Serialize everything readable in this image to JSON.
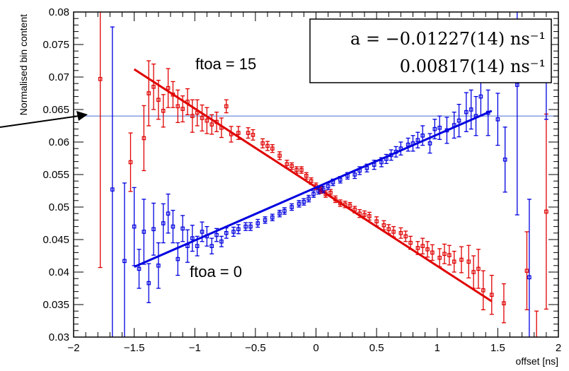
{
  "chart_data": {
    "type": "scatter",
    "xlabel": "offset [ns]",
    "ylabel": "Normalised bin content",
    "xlim": [
      -2,
      2
    ],
    "ylim": [
      0.03,
      0.08
    ],
    "x_ticks": [
      "−2",
      "−1.5",
      "−1",
      "−0.5",
      "0",
      "0.5",
      "1",
      "1.5",
      "2"
    ],
    "y_ticks": [
      "0.03",
      "0.035",
      "0.04",
      "0.045",
      "0.05",
      "0.055",
      "0.06",
      "0.065",
      "0.07",
      "0.075",
      "0.08"
    ],
    "reference_line_y": 0.064,
    "series": [
      {
        "label": "ftoa = 15",
        "color": "#e00000",
        "fit": {
          "x": [
            -1.5,
            1.45
          ],
          "y": [
            0.0712,
            0.0355
          ]
        },
        "points": [
          {
            "x": -1.78,
            "y": 0.0697,
            "err": 0.029
          },
          {
            "x": -1.53,
            "y": 0.0569,
            "err": 0.0045
          },
          {
            "x": -1.42,
            "y": 0.0606,
            "err": 0.005
          },
          {
            "x": -1.38,
            "y": 0.0675,
            "err": 0.005
          },
          {
            "x": -1.34,
            "y": 0.0685,
            "err": 0.0035
          },
          {
            "x": -1.3,
            "y": 0.0665,
            "err": 0.003
          },
          {
            "x": -1.26,
            "y": 0.0648,
            "err": 0.0025
          },
          {
            "x": -1.22,
            "y": 0.0683,
            "err": 0.003
          },
          {
            "x": -1.18,
            "y": 0.0673,
            "err": 0.002
          },
          {
            "x": -1.14,
            "y": 0.0655,
            "err": 0.0025
          },
          {
            "x": -1.1,
            "y": 0.0651,
            "err": 0.002
          },
          {
            "x": -1.06,
            "y": 0.0662,
            "err": 0.002
          },
          {
            "x": -1.02,
            "y": 0.064,
            "err": 0.0025
          },
          {
            "x": -0.98,
            "y": 0.0645,
            "err": 0.002
          },
          {
            "x": -0.94,
            "y": 0.0637,
            "err": 0.002
          },
          {
            "x": -0.9,
            "y": 0.0633,
            "err": 0.002
          },
          {
            "x": -0.86,
            "y": 0.0627,
            "err": 0.0015
          },
          {
            "x": -0.82,
            "y": 0.0631,
            "err": 0.0015
          },
          {
            "x": -0.78,
            "y": 0.0622,
            "err": 0.0015
          },
          {
            "x": -0.74,
            "y": 0.0655,
            "err": 0.001
          },
          {
            "x": -0.7,
            "y": 0.0612,
            "err": 0.0012
          },
          {
            "x": -0.64,
            "y": 0.0614,
            "err": 0.001
          },
          {
            "x": -0.56,
            "y": 0.0614,
            "err": 0.0008
          },
          {
            "x": -0.52,
            "y": 0.0611,
            "err": 0.0008
          },
          {
            "x": -0.44,
            "y": 0.0598,
            "err": 0.0007
          },
          {
            "x": -0.4,
            "y": 0.0594,
            "err": 0.0007
          },
          {
            "x": -0.36,
            "y": 0.059,
            "err": 0.0006
          },
          {
            "x": -0.3,
            "y": 0.0579,
            "err": 0.0006
          },
          {
            "x": -0.24,
            "y": 0.0566,
            "err": 0.0006
          },
          {
            "x": -0.2,
            "y": 0.0563,
            "err": 0.0005
          },
          {
            "x": -0.16,
            "y": 0.0557,
            "err": 0.0005
          },
          {
            "x": -0.12,
            "y": 0.0557,
            "err": 0.0005
          },
          {
            "x": -0.08,
            "y": 0.0548,
            "err": 0.0005
          },
          {
            "x": -0.04,
            "y": 0.054,
            "err": 0.0005
          },
          {
            "x": 0.0,
            "y": 0.0532,
            "err": 0.0005
          },
          {
            "x": 0.04,
            "y": 0.0526,
            "err": 0.0005
          },
          {
            "x": 0.08,
            "y": 0.052,
            "err": 0.0005
          },
          {
            "x": 0.12,
            "y": 0.0522,
            "err": 0.0005
          },
          {
            "x": 0.16,
            "y": 0.0512,
            "err": 0.0005
          },
          {
            "x": 0.2,
            "y": 0.0506,
            "err": 0.0005
          },
          {
            "x": 0.24,
            "y": 0.0504,
            "err": 0.0005
          },
          {
            "x": 0.28,
            "y": 0.0502,
            "err": 0.0005
          },
          {
            "x": 0.32,
            "y": 0.0496,
            "err": 0.0005
          },
          {
            "x": 0.36,
            "y": 0.049,
            "err": 0.0006
          },
          {
            "x": 0.4,
            "y": 0.0488,
            "err": 0.0006
          },
          {
            "x": 0.44,
            "y": 0.0486,
            "err": 0.0006
          },
          {
            "x": 0.5,
            "y": 0.0478,
            "err": 0.0007
          },
          {
            "x": 0.56,
            "y": 0.0472,
            "err": 0.0007
          },
          {
            "x": 0.6,
            "y": 0.0466,
            "err": 0.0007
          },
          {
            "x": 0.64,
            "y": 0.0462,
            "err": 0.0008
          },
          {
            "x": 0.7,
            "y": 0.046,
            "err": 0.0008
          },
          {
            "x": 0.74,
            "y": 0.0455,
            "err": 0.0008
          },
          {
            "x": 0.78,
            "y": 0.0445,
            "err": 0.001
          },
          {
            "x": 0.84,
            "y": 0.0437,
            "err": 0.001
          },
          {
            "x": 0.88,
            "y": 0.044,
            "err": 0.0012
          },
          {
            "x": 0.92,
            "y": 0.0435,
            "err": 0.0012
          },
          {
            "x": 0.96,
            "y": 0.043,
            "err": 0.0012
          },
          {
            "x": 1.02,
            "y": 0.0422,
            "err": 0.0014
          },
          {
            "x": 1.06,
            "y": 0.0428,
            "err": 0.0015
          },
          {
            "x": 1.1,
            "y": 0.0426,
            "err": 0.0015
          },
          {
            "x": 1.14,
            "y": 0.0416,
            "err": 0.0016
          },
          {
            "x": 1.2,
            "y": 0.0419,
            "err": 0.002
          },
          {
            "x": 1.26,
            "y": 0.0416,
            "err": 0.0025
          },
          {
            "x": 1.3,
            "y": 0.04,
            "err": 0.0025
          },
          {
            "x": 1.34,
            "y": 0.0405,
            "err": 0.003
          },
          {
            "x": 1.38,
            "y": 0.0372,
            "err": 0.003
          },
          {
            "x": 1.45,
            "y": 0.0365,
            "err": 0.003
          },
          {
            "x": 1.55,
            "y": 0.0352,
            "err": 0.003
          },
          {
            "x": 1.74,
            "y": 0.0402,
            "err": 0.006
          },
          {
            "x": 1.82,
            "y": 0.03,
            "err": 0.004
          },
          {
            "x": 1.9,
            "y": 0.0493,
            "err": 0.015
          }
        ]
      },
      {
        "label": "ftoa = 0",
        "color": "#0000e0",
        "fit": {
          "x": [
            -1.5,
            1.45
          ],
          "y": [
            0.0408,
            0.0648
          ]
        },
        "points": [
          {
            "x": -1.68,
            "y": 0.0527,
            "err": 0.025
          },
          {
            "x": -1.58,
            "y": 0.0417,
            "err": 0.012
          },
          {
            "x": -1.5,
            "y": 0.047,
            "err": 0.006
          },
          {
            "x": -1.46,
            "y": 0.0405,
            "err": 0.003
          },
          {
            "x": -1.42,
            "y": 0.0462,
            "err": 0.005
          },
          {
            "x": -1.38,
            "y": 0.0383,
            "err": 0.003
          },
          {
            "x": -1.34,
            "y": 0.0466,
            "err": 0.004
          },
          {
            "x": -1.3,
            "y": 0.041,
            "err": 0.0035
          },
          {
            "x": -1.26,
            "y": 0.0475,
            "err": 0.003
          },
          {
            "x": -1.22,
            "y": 0.049,
            "err": 0.003
          },
          {
            "x": -1.18,
            "y": 0.047,
            "err": 0.0025
          },
          {
            "x": -1.14,
            "y": 0.042,
            "err": 0.0025
          },
          {
            "x": -1.1,
            "y": 0.0467,
            "err": 0.002
          },
          {
            "x": -1.06,
            "y": 0.044,
            "err": 0.0025
          },
          {
            "x": -1.02,
            "y": 0.0452,
            "err": 0.002
          },
          {
            "x": -0.98,
            "y": 0.044,
            "err": 0.0015
          },
          {
            "x": -0.94,
            "y": 0.0462,
            "err": 0.0015
          },
          {
            "x": -0.9,
            "y": 0.0455,
            "err": 0.0015
          },
          {
            "x": -0.86,
            "y": 0.044,
            "err": 0.0012
          },
          {
            "x": -0.82,
            "y": 0.0457,
            "err": 0.001
          },
          {
            "x": -0.78,
            "y": 0.0447,
            "err": 0.0008
          },
          {
            "x": -0.74,
            "y": 0.046,
            "err": 0.0008
          },
          {
            "x": -0.68,
            "y": 0.0462,
            "err": 0.0007
          },
          {
            "x": -0.64,
            "y": 0.0466,
            "err": 0.0007
          },
          {
            "x": -0.58,
            "y": 0.047,
            "err": 0.0006
          },
          {
            "x": -0.54,
            "y": 0.047,
            "err": 0.0006
          },
          {
            "x": -0.48,
            "y": 0.0475,
            "err": 0.0006
          },
          {
            "x": -0.42,
            "y": 0.048,
            "err": 0.0005
          },
          {
            "x": -0.36,
            "y": 0.0484,
            "err": 0.0005
          },
          {
            "x": -0.3,
            "y": 0.049,
            "err": 0.0005
          },
          {
            "x": -0.26,
            "y": 0.0494,
            "err": 0.0005
          },
          {
            "x": -0.2,
            "y": 0.05,
            "err": 0.0005
          },
          {
            "x": -0.14,
            "y": 0.0505,
            "err": 0.0005
          },
          {
            "x": -0.1,
            "y": 0.0508,
            "err": 0.0005
          },
          {
            "x": -0.06,
            "y": 0.0513,
            "err": 0.0005
          },
          {
            "x": -0.02,
            "y": 0.052,
            "err": 0.0005
          },
          {
            "x": 0.02,
            "y": 0.0525,
            "err": 0.0005
          },
          {
            "x": 0.06,
            "y": 0.0527,
            "err": 0.0005
          },
          {
            "x": 0.1,
            "y": 0.0532,
            "err": 0.0005
          },
          {
            "x": 0.14,
            "y": 0.0538,
            "err": 0.0005
          },
          {
            "x": 0.2,
            "y": 0.0542,
            "err": 0.0005
          },
          {
            "x": 0.26,
            "y": 0.0548,
            "err": 0.0005
          },
          {
            "x": 0.32,
            "y": 0.055,
            "err": 0.0006
          },
          {
            "x": 0.36,
            "y": 0.0556,
            "err": 0.0006
          },
          {
            "x": 0.42,
            "y": 0.056,
            "err": 0.0006
          },
          {
            "x": 0.48,
            "y": 0.0565,
            "err": 0.0007
          },
          {
            "x": 0.54,
            "y": 0.0569,
            "err": 0.0007
          },
          {
            "x": 0.58,
            "y": 0.0574,
            "err": 0.0007
          },
          {
            "x": 0.62,
            "y": 0.058,
            "err": 0.0008
          },
          {
            "x": 0.66,
            "y": 0.0585,
            "err": 0.0008
          },
          {
            "x": 0.7,
            "y": 0.059,
            "err": 0.001
          },
          {
            "x": 0.76,
            "y": 0.0596,
            "err": 0.001
          },
          {
            "x": 0.8,
            "y": 0.0598,
            "err": 0.0012
          },
          {
            "x": 0.84,
            "y": 0.0603,
            "err": 0.0012
          },
          {
            "x": 0.88,
            "y": 0.061,
            "err": 0.0015
          },
          {
            "x": 0.94,
            "y": 0.0598,
            "err": 0.0015
          },
          {
            "x": 0.98,
            "y": 0.062,
            "err": 0.0015
          },
          {
            "x": 1.02,
            "y": 0.0622,
            "err": 0.0018
          },
          {
            "x": 1.08,
            "y": 0.0618,
            "err": 0.002
          },
          {
            "x": 1.14,
            "y": 0.0626,
            "err": 0.002
          },
          {
            "x": 1.18,
            "y": 0.0633,
            "err": 0.0025
          },
          {
            "x": 1.24,
            "y": 0.0646,
            "err": 0.003
          },
          {
            "x": 1.28,
            "y": 0.065,
            "err": 0.003
          },
          {
            "x": 1.32,
            "y": 0.064,
            "err": 0.003
          },
          {
            "x": 1.36,
            "y": 0.067,
            "err": 0.003
          },
          {
            "x": 1.42,
            "y": 0.0645,
            "err": 0.0035
          },
          {
            "x": 1.5,
            "y": 0.0635,
            "err": 0.004
          },
          {
            "x": 1.56,
            "y": 0.0573,
            "err": 0.005
          },
          {
            "x": 1.66,
            "y": 0.0688,
            "err": 0.02
          },
          {
            "x": 1.76,
            "y": 0.0392,
            "err": 0.012
          },
          {
            "x": 1.9,
            "y": 0.0695,
            "err": 0.006
          }
        ]
      }
    ],
    "fit_box": {
      "line1": "a = −0.01227(14) ns⁻¹",
      "line2": "0.00817(14) ns⁻¹"
    }
  }
}
